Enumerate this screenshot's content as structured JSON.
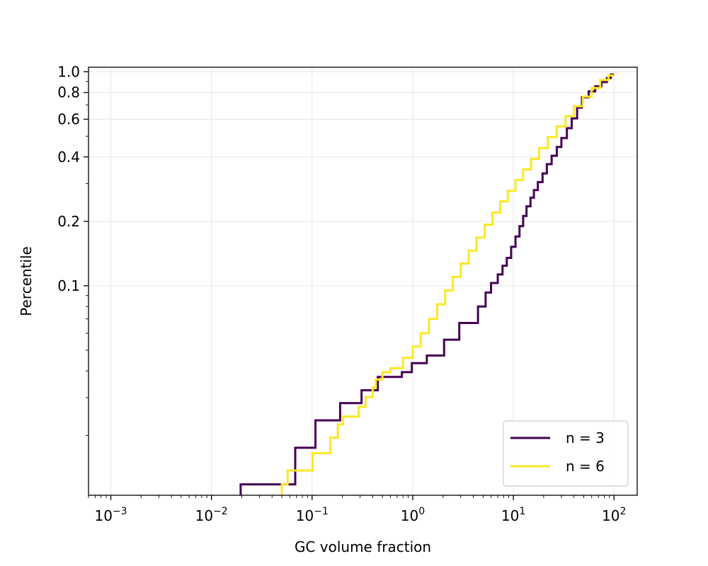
{
  "chart_data": {
    "type": "line",
    "drawstyle": "steps",
    "title": "",
    "xlabel": "GC volume fraction",
    "ylabel": "Percentile",
    "xscale": "log",
    "yscale": "log",
    "xlim": [
      0.0006,
      170
    ],
    "ylim": [
      0.0105,
      1.05
    ],
    "grid": true,
    "legend_position": "lower-right",
    "x_ticks": [
      {
        "value": 0.001,
        "base": "10",
        "exp": "−3"
      },
      {
        "value": 0.01,
        "base": "10",
        "exp": "−2"
      },
      {
        "value": 0.1,
        "base": "10",
        "exp": "−1"
      },
      {
        "value": 1,
        "base": "10",
        "exp": "0"
      },
      {
        "value": 10,
        "base": "10",
        "exp": "1"
      },
      {
        "value": 100,
        "base": "10",
        "exp": "2"
      }
    ],
    "y_ticks": [
      {
        "value": 0.1,
        "label": "0.1"
      },
      {
        "value": 0.2,
        "label": "0.2"
      },
      {
        "value": 0.4,
        "label": "0.4"
      },
      {
        "value": 0.6,
        "label": "0.6"
      },
      {
        "value": 0.8,
        "label": "0.8"
      },
      {
        "value": 1.0,
        "label": "1.0"
      }
    ],
    "series": [
      {
        "name": "n = 3",
        "color": "#440154",
        "x": [
          0.0195,
          0.0195,
          0.068,
          0.068,
          0.108,
          0.108,
          0.19,
          0.19,
          0.31,
          0.31,
          0.45,
          0.45,
          0.78,
          0.78,
          0.98,
          0.98,
          1.38,
          1.38,
          2.05,
          2.05,
          2.9,
          2.9,
          4.45,
          4.45,
          5.3,
          5.3,
          6.0,
          6.0,
          7.0,
          7.0,
          7.8,
          7.8,
          8.6,
          8.6,
          9.5,
          9.5,
          10.5,
          10.5,
          11.5,
          11.5,
          12.5,
          12.5,
          13.5,
          13.5,
          14.8,
          14.8,
          16.0,
          16.0,
          17.5,
          17.5,
          19.5,
          19.5,
          21.5,
          21.5,
          24.0,
          24.0,
          27.0,
          27.0,
          30.0,
          30.0,
          34.0,
          34.0,
          38.0,
          38.0,
          43.0,
          43.0,
          48.0,
          48.0,
          56.0,
          56.0,
          65.0,
          65.0,
          75.0,
          75.0,
          85.0,
          85.0,
          93.0,
          93.0,
          100.0
        ],
        "y": [
          0.0105,
          0.0118,
          0.0118,
          0.0175,
          0.0175,
          0.0235,
          0.0235,
          0.0283,
          0.0283,
          0.0325,
          0.0325,
          0.0375,
          0.0375,
          0.0395,
          0.0395,
          0.0435,
          0.0435,
          0.0472,
          0.0472,
          0.056,
          0.056,
          0.067,
          0.067,
          0.08,
          0.08,
          0.093,
          0.093,
          0.103,
          0.103,
          0.113,
          0.113,
          0.124,
          0.124,
          0.135,
          0.135,
          0.152,
          0.152,
          0.17,
          0.17,
          0.19,
          0.19,
          0.212,
          0.212,
          0.235,
          0.235,
          0.258,
          0.258,
          0.28,
          0.28,
          0.305,
          0.305,
          0.335,
          0.335,
          0.37,
          0.37,
          0.405,
          0.405,
          0.445,
          0.445,
          0.49,
          0.49,
          0.545,
          0.545,
          0.605,
          0.605,
          0.68,
          0.68,
          0.76,
          0.76,
          0.81,
          0.81,
          0.855,
          0.855,
          0.895,
          0.895,
          0.935,
          0.935,
          0.97,
          0.97
        ]
      },
      {
        "name": "n = 6",
        "color": "#fde725",
        "x": [
          0.05,
          0.05,
          0.057,
          0.057,
          0.101,
          0.101,
          0.152,
          0.152,
          0.18,
          0.18,
          0.203,
          0.203,
          0.29,
          0.29,
          0.34,
          0.34,
          0.4,
          0.4,
          0.43,
          0.43,
          0.5,
          0.5,
          0.6,
          0.6,
          0.8,
          0.8,
          1.0,
          1.0,
          1.2,
          1.2,
          1.45,
          1.45,
          1.75,
          1.75,
          2.1,
          2.1,
          2.5,
          2.5,
          3.0,
          3.0,
          3.6,
          3.6,
          4.3,
          4.3,
          5.2,
          5.2,
          6.2,
          6.2,
          7.4,
          7.4,
          8.8,
          8.8,
          10.5,
          10.5,
          12.5,
          12.5,
          15.0,
          15.0,
          18.0,
          18.0,
          22.0,
          22.0,
          27.0,
          27.0,
          33.0,
          33.0,
          40.0,
          40.0,
          49.0,
          49.0,
          60.0,
          60.0,
          73.0,
          73.0,
          88.0,
          88.0,
          100.0
        ],
        "y": [
          0.0105,
          0.0118,
          0.0118,
          0.0137,
          0.0137,
          0.0165,
          0.0165,
          0.0195,
          0.0195,
          0.0225,
          0.0225,
          0.0245,
          0.0245,
          0.0272,
          0.0272,
          0.0302,
          0.0302,
          0.0335,
          0.0335,
          0.0365,
          0.0365,
          0.0395,
          0.0395,
          0.0412,
          0.0412,
          0.046,
          0.046,
          0.052,
          0.052,
          0.06,
          0.06,
          0.07,
          0.07,
          0.082,
          0.082,
          0.095,
          0.095,
          0.11,
          0.11,
          0.127,
          0.127,
          0.146,
          0.146,
          0.168,
          0.168,
          0.193,
          0.193,
          0.22,
          0.22,
          0.248,
          0.248,
          0.278,
          0.278,
          0.312,
          0.312,
          0.35,
          0.35,
          0.392,
          0.392,
          0.44,
          0.44,
          0.495,
          0.495,
          0.555,
          0.555,
          0.62,
          0.62,
          0.69,
          0.69,
          0.765,
          0.765,
          0.84,
          0.84,
          0.915,
          0.915,
          0.96,
          0.96
        ]
      }
    ]
  }
}
